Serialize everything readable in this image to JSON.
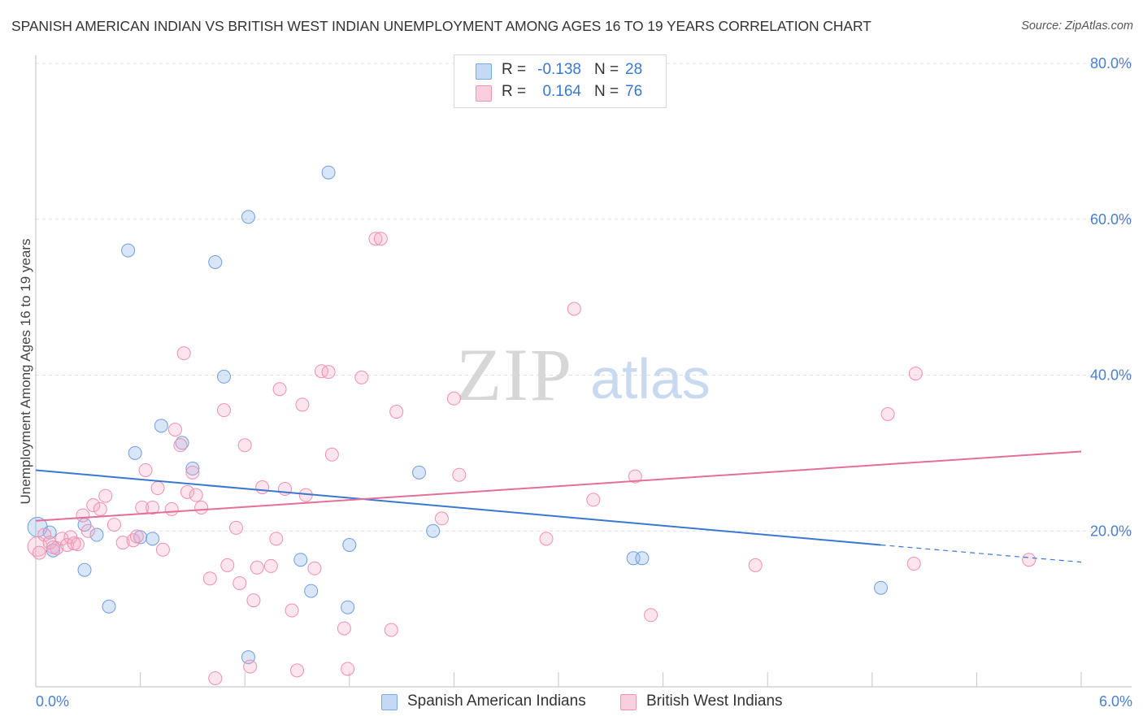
{
  "title": "SPANISH AMERICAN INDIAN VS BRITISH WEST INDIAN UNEMPLOYMENT AMONG AGES 16 TO 19 YEARS CORRELATION CHART",
  "source": "Source: ZipAtlas.com",
  "watermark": {
    "zip": "ZIP",
    "atlas": "atlas"
  },
  "legend": {
    "r_label": "R =",
    "n_label": "N =",
    "rows": [
      {
        "r": "-0.138",
        "n": "28"
      },
      {
        "r": "0.164",
        "n": "76"
      }
    ]
  },
  "chart_data": {
    "type": "scatter",
    "title": "SPANISH AMERICAN INDIAN VS BRITISH WEST INDIAN UNEMPLOYMENT AMONG AGES 16 TO 19 YEARS CORRELATION CHART",
    "xlabel": "",
    "ylabel": "Unemployment Among Ages 16 to 19 years",
    "xlim": [
      0,
      6
    ],
    "ylim": [
      0,
      80
    ],
    "x_tick_labels": [
      {
        "value": 0,
        "label": "0.0%"
      },
      {
        "value": 6,
        "label": "6.0%"
      }
    ],
    "y_tick_labels": [
      {
        "value": 20,
        "label": "20.0%"
      },
      {
        "value": 40,
        "label": "40.0%"
      },
      {
        "value": 60,
        "label": "60.0%"
      },
      {
        "value": 80,
        "label": "80.0%"
      }
    ],
    "grid": true,
    "legend_position": "top-center",
    "colors": {
      "blue": "#6f9de3",
      "pink": "#ef8fb0",
      "blue_line": "#3a78d0",
      "pink_line": "#e56e98"
    },
    "series": [
      {
        "name": "Spanish American Indians",
        "color": "#6f9de3",
        "points": [
          [
            0.01,
            20.5
          ],
          [
            0.08,
            19.8
          ],
          [
            0.1,
            17.5
          ],
          [
            0.28,
            20.8
          ],
          [
            0.28,
            15.0
          ],
          [
            0.35,
            19.5
          ],
          [
            0.42,
            10.3
          ],
          [
            0.53,
            56.0
          ],
          [
            0.57,
            30.0
          ],
          [
            0.6,
            19.2
          ],
          [
            0.67,
            19.0
          ],
          [
            0.72,
            33.5
          ],
          [
            0.84,
            31.3
          ],
          [
            0.9,
            28.0
          ],
          [
            1.03,
            54.5
          ],
          [
            1.08,
            39.8
          ],
          [
            1.22,
            3.8
          ],
          [
            1.22,
            60.3
          ],
          [
            1.52,
            16.3
          ],
          [
            1.58,
            12.3
          ],
          [
            1.68,
            66.0
          ],
          [
            1.79,
            10.2
          ],
          [
            1.8,
            18.2
          ],
          [
            2.2,
            27.5
          ],
          [
            2.28,
            20.0
          ],
          [
            3.43,
            16.5
          ],
          [
            3.48,
            16.5
          ],
          [
            4.85,
            12.7
          ]
        ],
        "trend": {
          "x": [
            0,
            4.85
          ],
          "y": [
            27.8,
            18.2
          ],
          "dashed_to": [
            6,
            16.0
          ]
        }
      },
      {
        "name": "British West Indians",
        "color": "#ef8fb0",
        "points": [
          [
            0.01,
            18.0
          ],
          [
            0.02,
            17.2
          ],
          [
            0.05,
            19.5
          ],
          [
            0.08,
            18.5
          ],
          [
            0.12,
            17.8
          ],
          [
            0.15,
            19.0
          ],
          [
            0.18,
            18.2
          ],
          [
            0.2,
            19.2
          ],
          [
            0.24,
            18.3
          ],
          [
            0.27,
            22.0
          ],
          [
            0.3,
            20.0
          ],
          [
            0.33,
            23.3
          ],
          [
            0.37,
            22.8
          ],
          [
            0.4,
            24.5
          ],
          [
            0.45,
            20.8
          ],
          [
            0.5,
            18.5
          ],
          [
            0.56,
            18.8
          ],
          [
            0.58,
            19.3
          ],
          [
            0.61,
            23.0
          ],
          [
            0.63,
            27.8
          ],
          [
            0.67,
            23.0
          ],
          [
            0.7,
            25.5
          ],
          [
            0.73,
            17.6
          ],
          [
            0.78,
            22.8
          ],
          [
            0.8,
            33.0
          ],
          [
            0.83,
            31.0
          ],
          [
            0.85,
            42.8
          ],
          [
            0.87,
            25.0
          ],
          [
            0.9,
            27.5
          ],
          [
            0.92,
            24.6
          ],
          [
            0.95,
            23.0
          ],
          [
            1.0,
            13.9
          ],
          [
            1.03,
            1.1
          ],
          [
            1.08,
            35.5
          ],
          [
            1.1,
            15.6
          ],
          [
            1.15,
            20.4
          ],
          [
            1.17,
            13.3
          ],
          [
            1.2,
            31.0
          ],
          [
            1.23,
            2.6
          ],
          [
            1.25,
            11.1
          ],
          [
            1.27,
            15.3
          ],
          [
            1.3,
            25.6
          ],
          [
            1.35,
            15.5
          ],
          [
            1.38,
            19.0
          ],
          [
            1.4,
            38.2
          ],
          [
            1.43,
            25.4
          ],
          [
            1.47,
            9.8
          ],
          [
            1.5,
            2.1
          ],
          [
            1.53,
            36.2
          ],
          [
            1.55,
            24.6
          ],
          [
            1.6,
            15.2
          ],
          [
            1.64,
            40.5
          ],
          [
            1.68,
            40.4
          ],
          [
            1.7,
            29.8
          ],
          [
            1.77,
            7.5
          ],
          [
            1.79,
            2.3
          ],
          [
            1.87,
            39.7
          ],
          [
            1.95,
            57.5
          ],
          [
            1.98,
            57.5
          ],
          [
            2.04,
            7.3
          ],
          [
            2.07,
            35.3
          ],
          [
            2.33,
            21.6
          ],
          [
            2.4,
            37.0
          ],
          [
            2.43,
            27.2
          ],
          [
            2.93,
            19.0
          ],
          [
            3.09,
            48.5
          ],
          [
            3.2,
            24.0
          ],
          [
            3.44,
            27.0
          ],
          [
            3.53,
            9.2
          ],
          [
            4.13,
            15.6
          ],
          [
            4.89,
            35.0
          ],
          [
            5.04,
            15.8
          ],
          [
            5.05,
            40.2
          ],
          [
            5.7,
            16.3
          ],
          [
            0.1,
            17.9
          ],
          [
            0.22,
            18.4
          ]
        ],
        "trend": {
          "x": [
            0,
            6
          ],
          "y": [
            21.3,
            30.2
          ]
        }
      }
    ]
  }
}
